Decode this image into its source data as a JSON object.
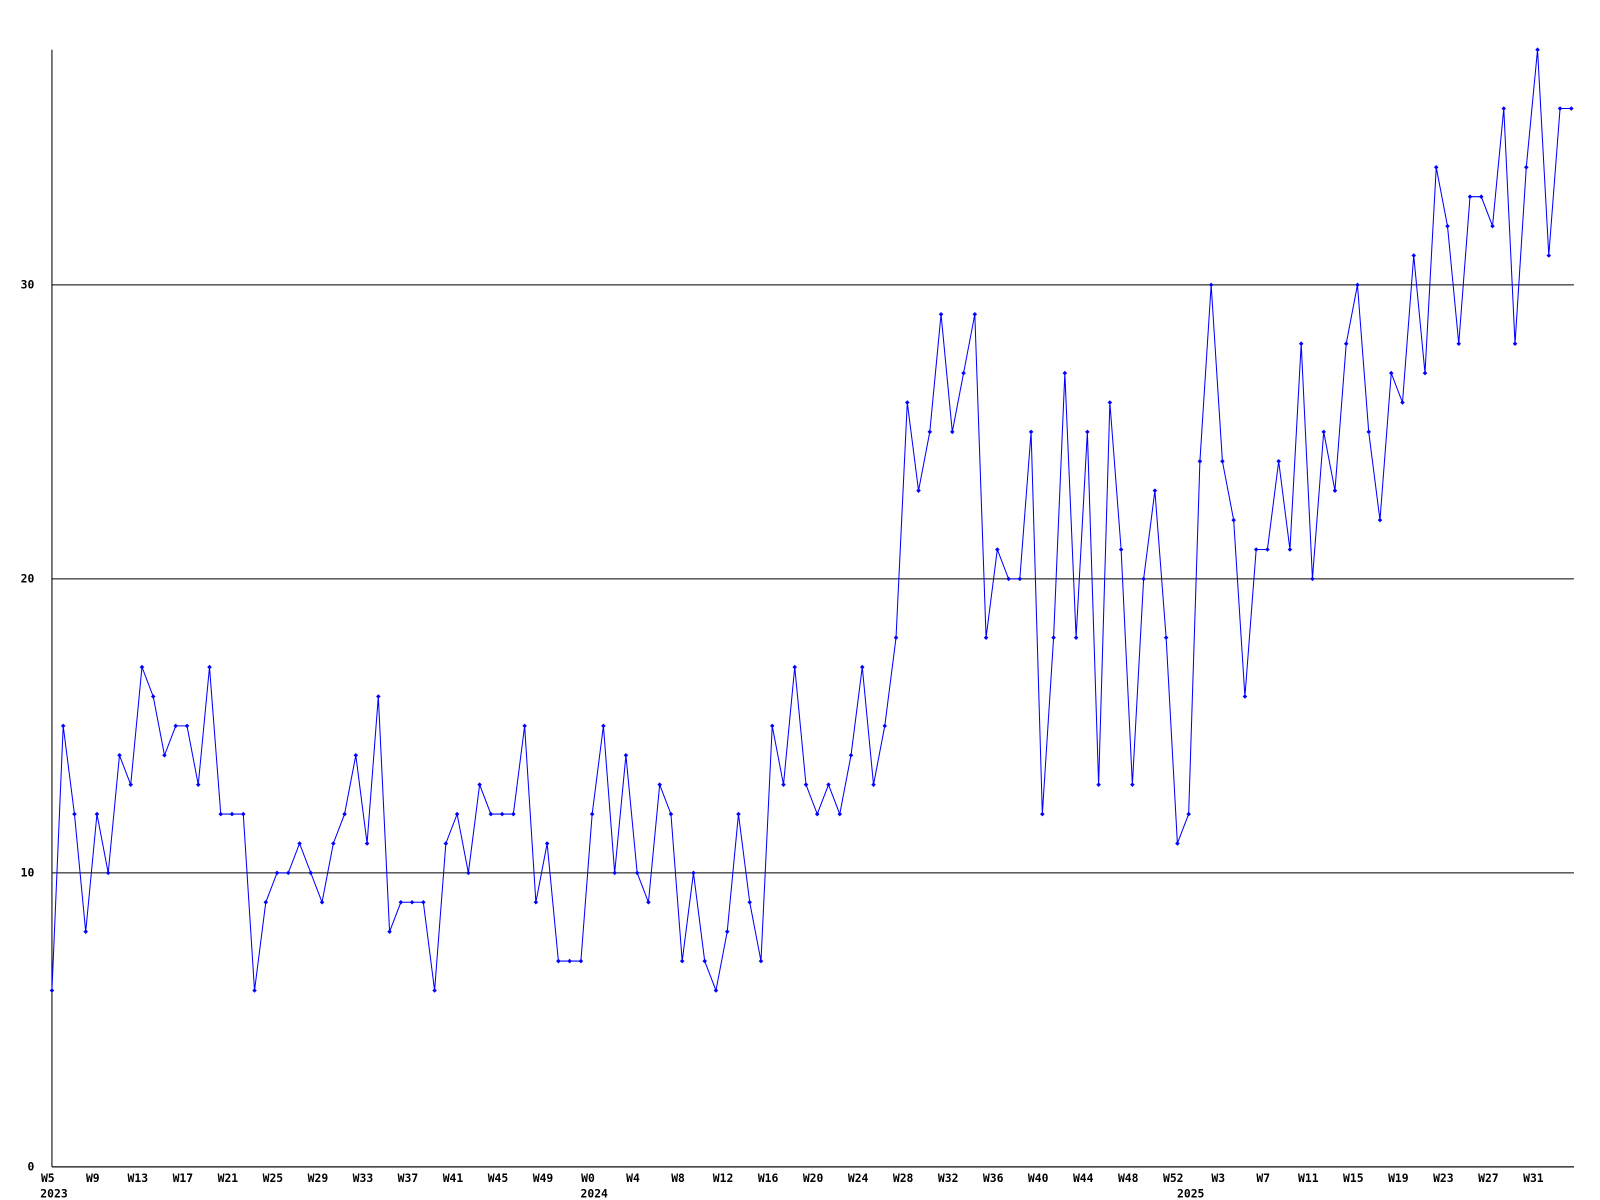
{
  "chart_data": {
    "type": "line",
    "categories": [
      "W5",
      null,
      null,
      null,
      "W9",
      null,
      null,
      null,
      "W13",
      null,
      null,
      null,
      "W17",
      null,
      null,
      null,
      "W21",
      null,
      null,
      null,
      "W25",
      null,
      null,
      null,
      "W29",
      null,
      null,
      null,
      "W33",
      null,
      null,
      null,
      "W37",
      null,
      null,
      null,
      "W41",
      null,
      null,
      null,
      "W45",
      null,
      null,
      null,
      "W49",
      null,
      null,
      null,
      "W0",
      null,
      null,
      null,
      "W4",
      null,
      null,
      null,
      "W8",
      null,
      null,
      null,
      "W12",
      null,
      null,
      null,
      "W16",
      null,
      null,
      null,
      "W20",
      null,
      null,
      null,
      "W24",
      null,
      null,
      null,
      "W28",
      null,
      null,
      null,
      "W32",
      null,
      null,
      null,
      "W36",
      null,
      null,
      null,
      "W40",
      null,
      null,
      null,
      "W44",
      null,
      null,
      null,
      "W48",
      null,
      null,
      null,
      "W52",
      null,
      null,
      null,
      "W3",
      null,
      null,
      null,
      "W7",
      null,
      null,
      null,
      "W11",
      null,
      null,
      null,
      "W15",
      null,
      null,
      null,
      "W19",
      null,
      null,
      null,
      "W23",
      null,
      null,
      null,
      "W27",
      null,
      null,
      null,
      "W31",
      null,
      null,
      null
    ],
    "year_labels": [
      {
        "label": "2023",
        "category_index": 0
      },
      {
        "label": "2024",
        "category_index": 48
      },
      {
        "label": "2025",
        "category_index": 101
      }
    ],
    "series": [
      {
        "color": "#0000ff",
        "values": [
          6,
          15,
          12,
          8,
          12,
          10,
          14,
          13,
          17,
          16,
          14,
          15,
          15,
          13,
          17,
          12,
          12,
          12,
          6,
          9,
          10,
          10,
          11,
          10,
          9,
          11,
          12,
          14,
          11,
          16,
          8,
          9,
          9,
          9,
          6,
          11,
          12,
          10,
          13,
          12,
          12,
          12,
          15,
          9,
          11,
          7,
          7,
          7,
          12,
          15,
          10,
          14,
          10,
          9,
          13,
          12,
          7,
          10,
          7,
          6,
          8,
          12,
          9,
          7,
          15,
          13,
          17,
          13,
          12,
          13,
          12,
          14,
          17,
          13,
          15,
          18,
          26,
          23,
          25,
          29,
          25,
          27,
          29,
          18,
          21,
          20,
          20,
          25,
          12,
          18,
          27,
          18,
          25,
          13,
          26,
          21,
          13,
          20,
          23,
          18,
          11,
          12,
          24,
          30,
          24,
          22,
          16,
          21,
          21,
          24,
          21,
          28,
          20,
          25,
          23,
          28,
          30,
          25,
          22,
          27,
          26,
          31,
          27,
          34,
          32,
          28,
          33,
          33,
          32,
          36,
          28,
          34,
          38,
          31,
          36,
          36
        ]
      }
    ],
    "ylim": [
      0,
      38
    ],
    "yticks": [
      0,
      10,
      20,
      30
    ],
    "grid": true
  }
}
